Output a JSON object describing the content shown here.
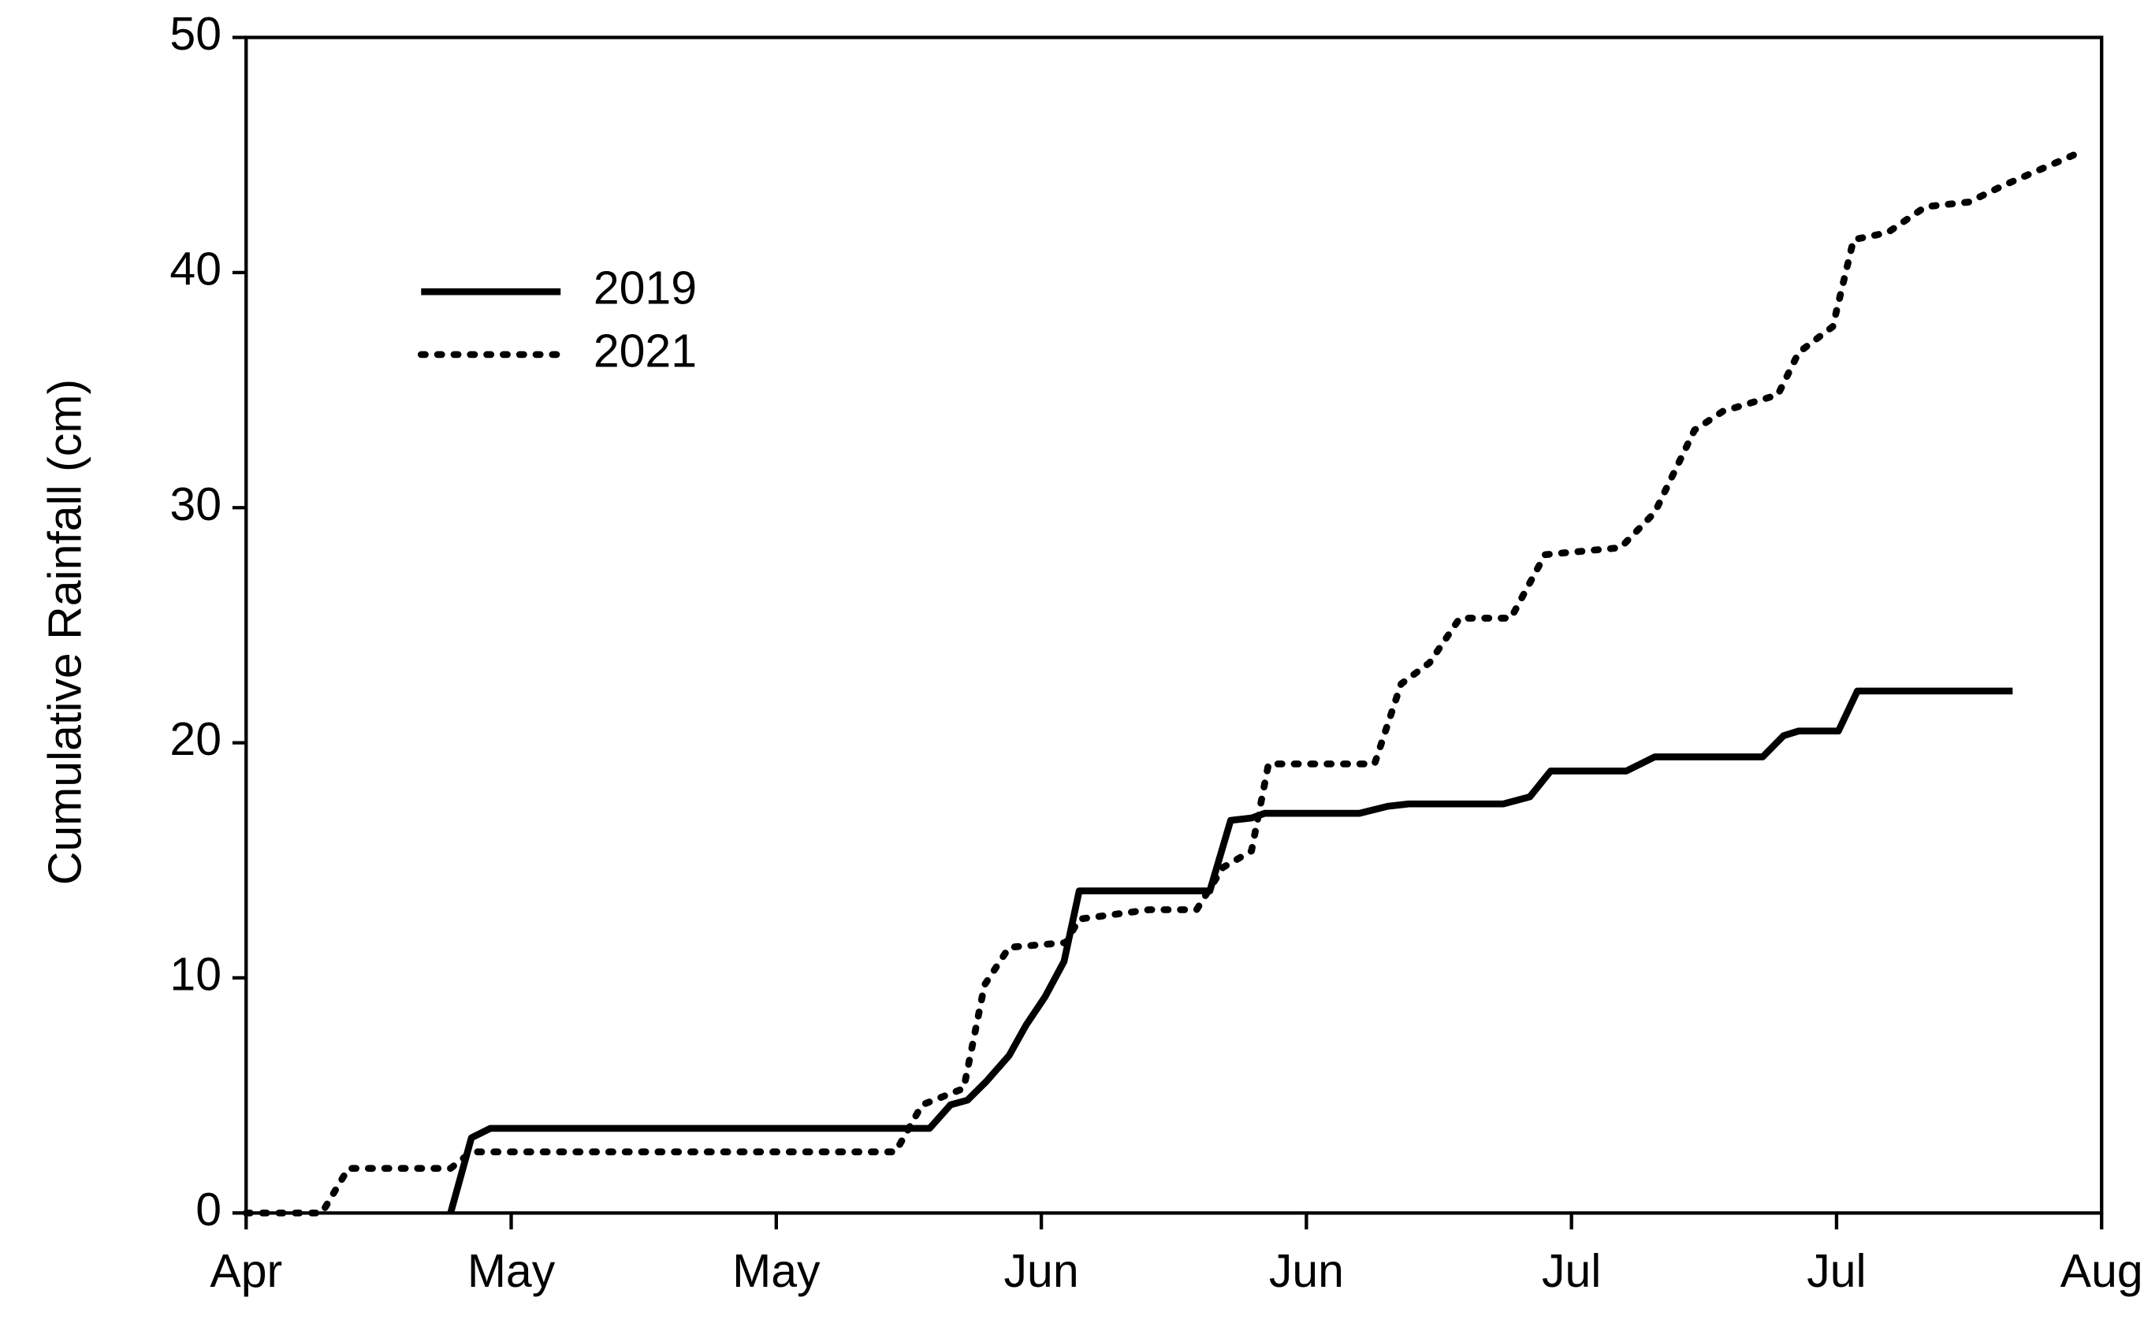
{
  "chart_data": {
    "type": "line",
    "ylabel": "Cumulative Rainfall (cm)",
    "xlim": [
      0,
      98
    ],
    "xticks": [
      {
        "value": 0,
        "label": "Apr"
      },
      {
        "value": 14,
        "label": "May"
      },
      {
        "value": 28,
        "label": "May"
      },
      {
        "value": 42,
        "label": "Jun"
      },
      {
        "value": 56,
        "label": "Jun"
      },
      {
        "value": 70,
        "label": "Jul"
      },
      {
        "value": 84,
        "label": "Jul"
      },
      {
        "value": 98,
        "label": "Aug"
      }
    ],
    "ylim": [
      0,
      50
    ],
    "yticks": [
      0,
      10,
      20,
      30,
      40,
      50
    ],
    "legend": "upper-left",
    "series": [
      {
        "name": "2019",
        "color": "#000000",
        "style": "solid",
        "x": [
          10.8,
          11.9,
          12.9,
          36.1,
          37.2,
          38.1,
          39.1,
          40.3,
          41.2,
          42.2,
          43.2,
          44.0,
          50.9,
          52.0,
          53.1,
          53.8,
          58.8,
          60.3,
          61.4,
          66.4,
          67.8,
          68.9,
          72.9,
          74.4,
          80.1,
          81.2,
          82.0,
          84.1,
          85.1,
          93.3
        ],
        "values": [
          0,
          3.2,
          3.6,
          3.6,
          4.6,
          4.8,
          5.6,
          6.7,
          8.0,
          9.2,
          10.7,
          13.7,
          13.7,
          16.7,
          16.8,
          17.0,
          17.0,
          17.3,
          17.4,
          17.4,
          17.7,
          18.8,
          18.8,
          19.4,
          19.4,
          20.3,
          20.5,
          20.5,
          22.2,
          22.2
        ]
      },
      {
        "name": "2021",
        "color": "#000000",
        "style": "dotted",
        "x": [
          0,
          4.0,
          5.4,
          10.8,
          11.9,
          34.3,
          35.7,
          37.9,
          39.0,
          40.3,
          43.3,
          44.0,
          47.7,
          50.2,
          51.6,
          53.1,
          54.0,
          59.6,
          61.0,
          62.5,
          64.1,
          66.8,
          68.6,
          72.6,
          74.4,
          76.5,
          78.0,
          80.9,
          82.0,
          83.8,
          84.9,
          86.7,
          88.7,
          91.0,
          92.8,
          97.1
        ],
        "values": [
          0,
          0,
          1.9,
          1.9,
          2.6,
          2.6,
          4.6,
          5.3,
          9.7,
          11.3,
          11.5,
          12.5,
          12.9,
          12.9,
          14.7,
          15.4,
          19.1,
          19.1,
          22.5,
          23.4,
          25.3,
          25.3,
          28.0,
          28.3,
          29.8,
          33.3,
          34.1,
          34.8,
          36.6,
          37.7,
          41.4,
          41.7,
          42.8,
          43.0,
          43.7,
          45.2
        ]
      }
    ]
  }
}
